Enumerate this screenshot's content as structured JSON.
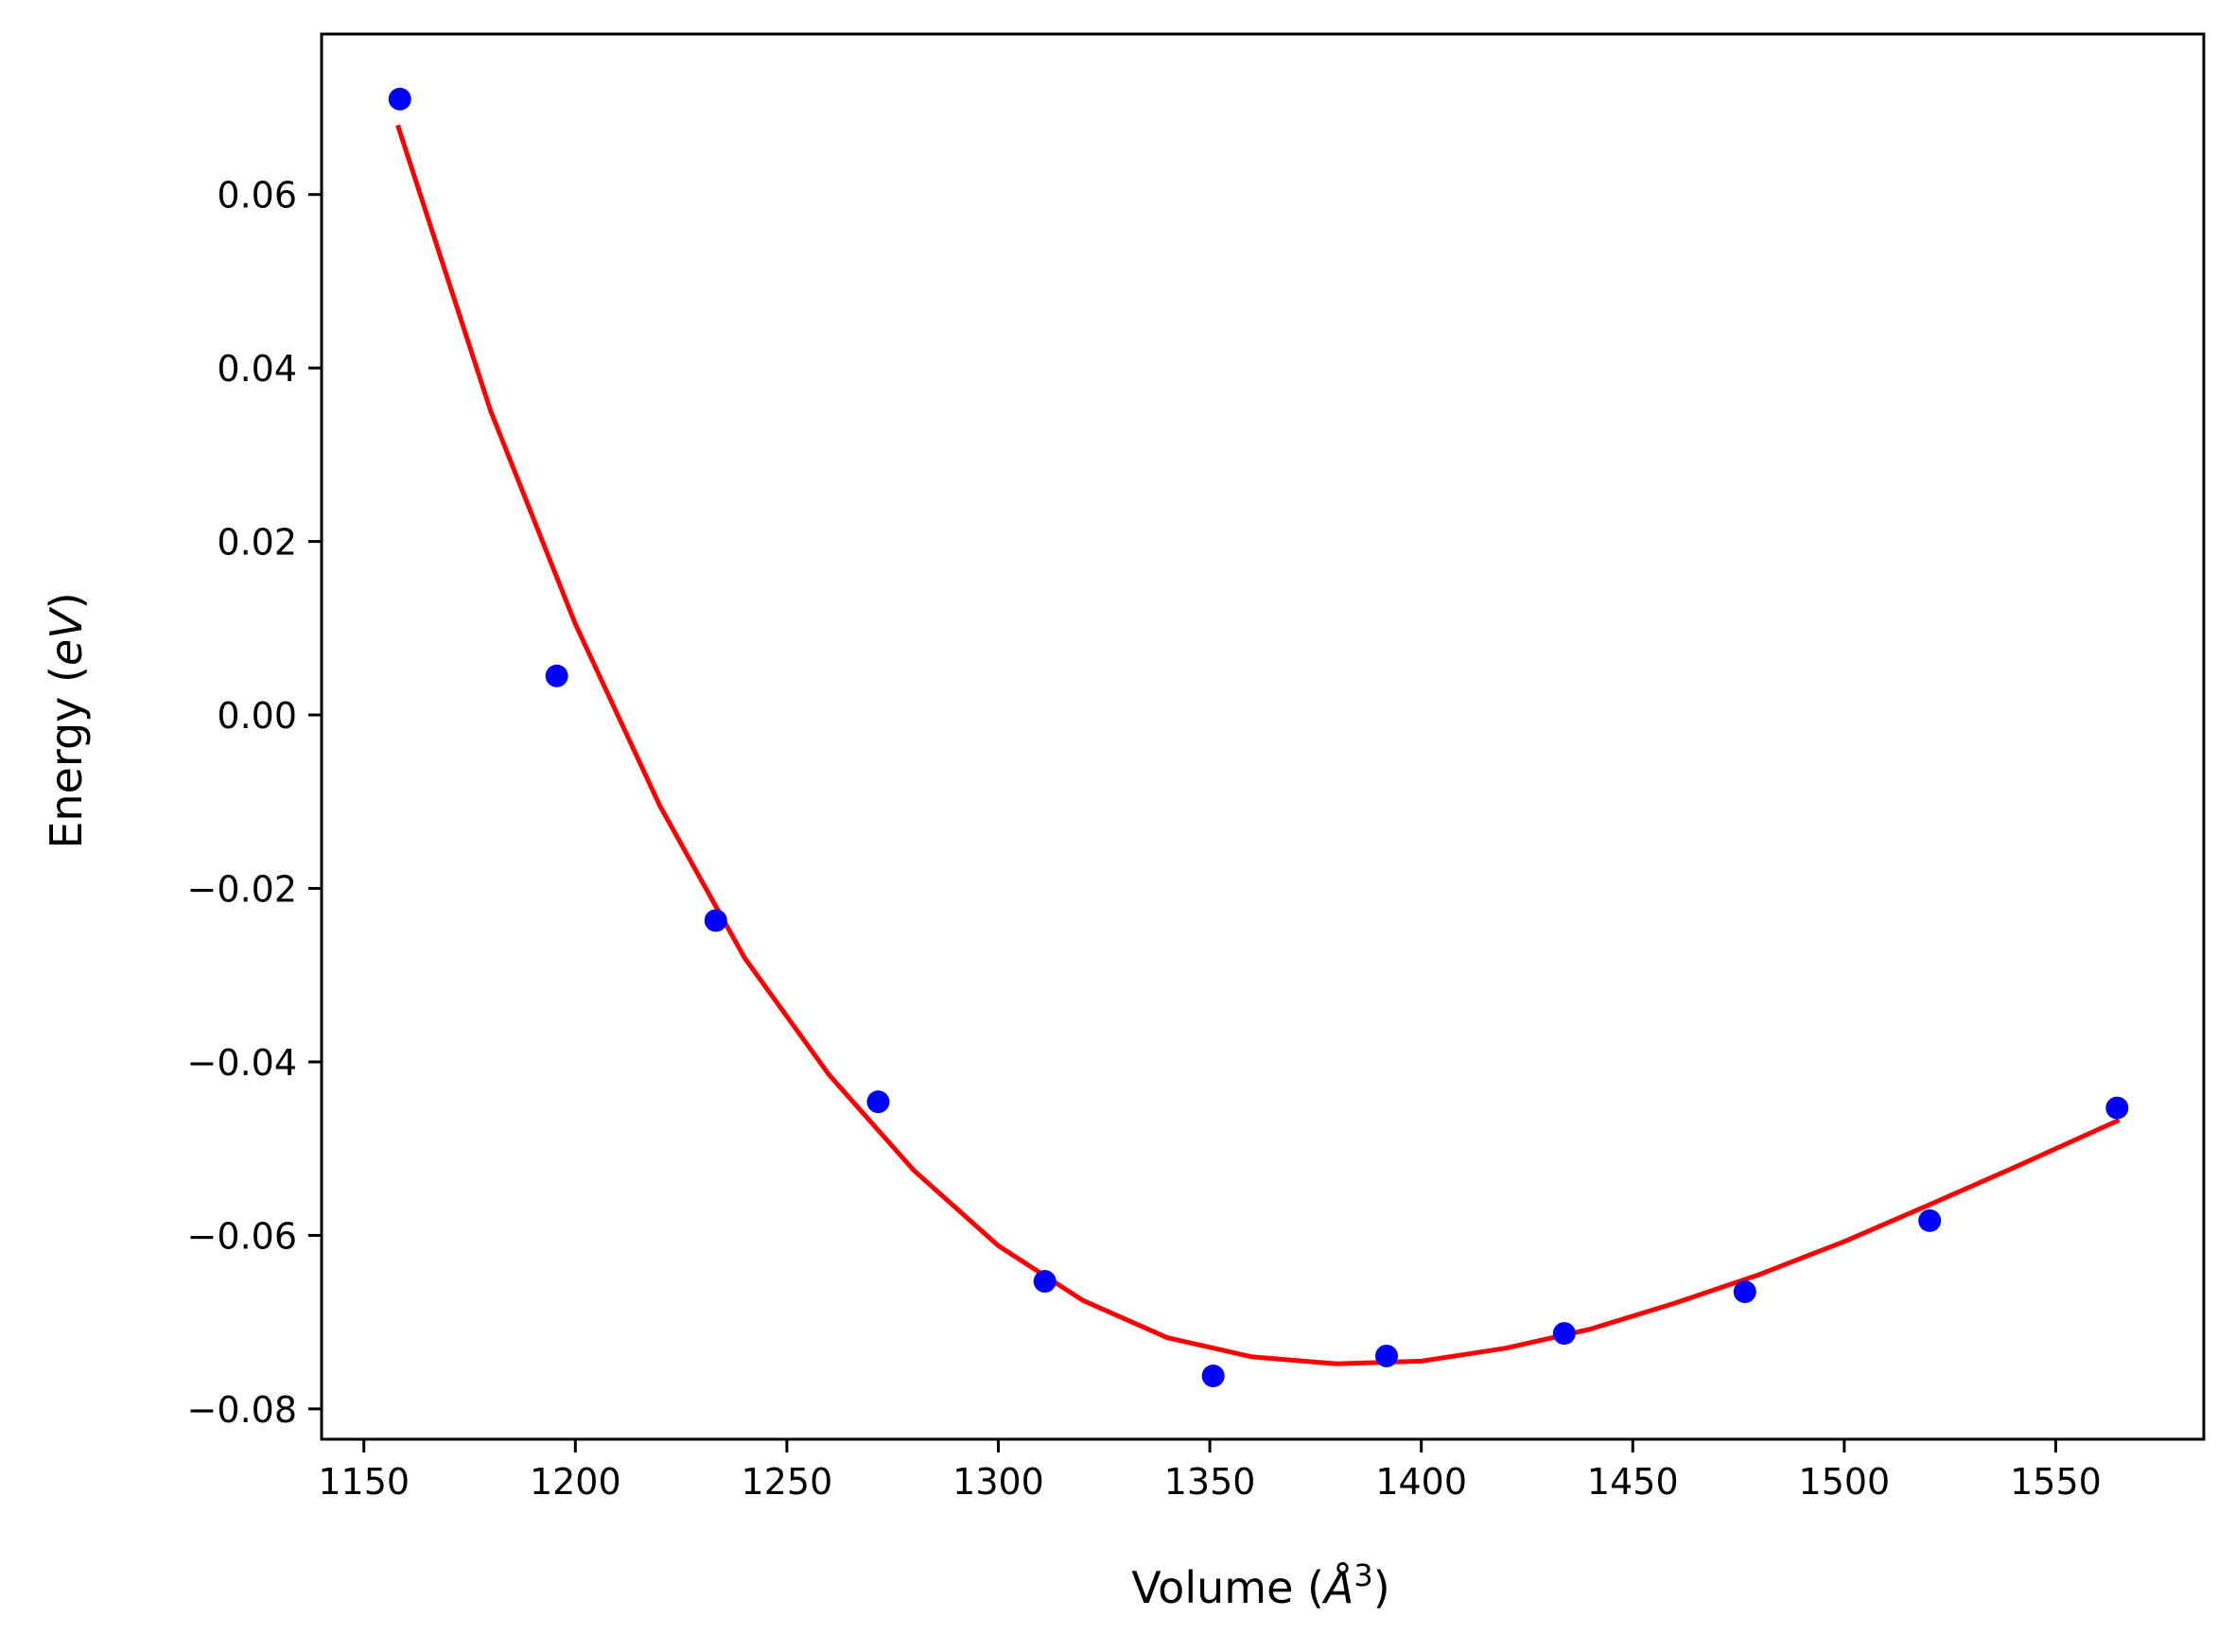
{
  "chart_data": {
    "type": "scatter",
    "title": "",
    "xlabel": {
      "main": "Volume (",
      "italic": "Å",
      "sup": "3",
      "close": ")"
    },
    "ylabel": {
      "main": "Energy (",
      "italic": "eV",
      "close": ")"
    },
    "xlim": [
      1140,
      1585
    ],
    "ylim": [
      -0.0835,
      0.0785
    ],
    "x_ticks": [
      1150,
      1200,
      1250,
      1300,
      1350,
      1400,
      1450,
      1500,
      1550
    ],
    "x_tick_labels": [
      "1150",
      "1200",
      "1250",
      "1300",
      "1350",
      "1400",
      "1450",
      "1500",
      "1550"
    ],
    "y_ticks": [
      -0.08,
      -0.06,
      -0.04,
      -0.02,
      0.0,
      0.02,
      0.04,
      0.06
    ],
    "y_tick_labels": [
      "−0.08",
      "−0.06",
      "−0.04",
      "−0.02",
      "0.00",
      "0.02",
      "0.04",
      "0.06"
    ],
    "grid": false,
    "legend": "none",
    "series": [
      {
        "kind": "points",
        "color": "#0000ff",
        "x": [
          1158.5,
          1195.6,
          1233.2,
          1271.6,
          1311.0,
          1350.8,
          1391.8,
          1433.8,
          1476.5,
          1520.2,
          1564.5
        ],
        "y": [
          0.071,
          0.0045,
          -0.0237,
          -0.0446,
          -0.0653,
          -0.0762,
          -0.0739,
          -0.0713,
          -0.0665,
          -0.0583,
          -0.0453
        ]
      },
      {
        "kind": "fit-curve",
        "color": "#ff0000",
        "x": [
          1158,
          1180,
          1200,
          1220,
          1240,
          1260,
          1280,
          1300,
          1320,
          1340,
          1360,
          1380,
          1400,
          1420,
          1440,
          1460,
          1480,
          1500,
          1520,
          1540,
          1565
        ],
        "y": [
          0.068,
          0.035,
          0.0105,
          -0.0105,
          -0.028,
          -0.0415,
          -0.0525,
          -0.0612,
          -0.0675,
          -0.0718,
          -0.074,
          -0.0748,
          -0.0745,
          -0.073,
          -0.0708,
          -0.0678,
          -0.0645,
          -0.0607,
          -0.0565,
          -0.0522,
          -0.0467
        ]
      }
    ]
  }
}
